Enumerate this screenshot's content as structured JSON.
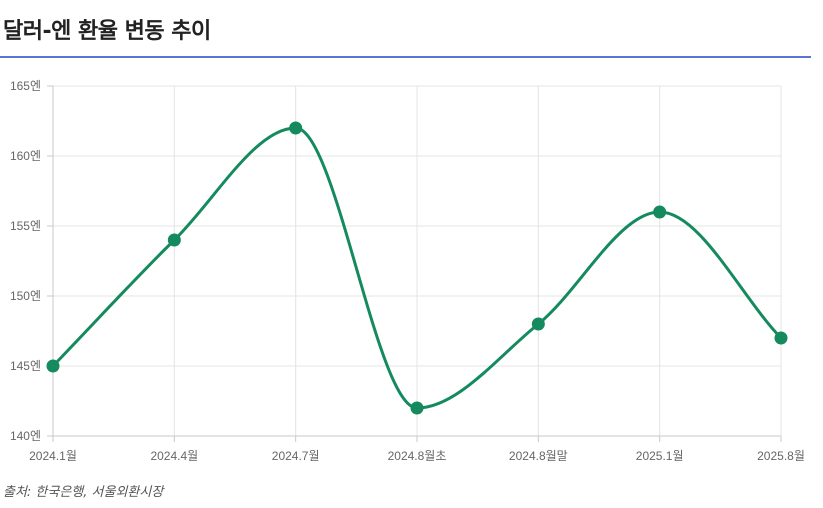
{
  "title": "달러-엔 환율 변동 추이",
  "source": "출처: 한국은행, 서울외환시장",
  "colors": {
    "line": "#158a5e",
    "point": "#158a5e",
    "grid": "#e4e4e4",
    "axis": "#c9c9c9",
    "tick_text": "#666666",
    "title_rule": "#5b73d6"
  },
  "chart_data": {
    "type": "line",
    "title": "",
    "xlabel": "",
    "ylabel": "",
    "categories": [
      "2024.1월",
      "2024.4월",
      "2024.7월",
      "2024.8월초",
      "2024.8월말",
      "2025.1월",
      "2025.8월"
    ],
    "values": [
      145,
      154,
      162,
      142,
      148,
      156,
      147
    ],
    "ylim": [
      140,
      165
    ],
    "y_ticks": [
      140,
      145,
      150,
      155,
      160,
      165
    ],
    "y_tick_suffix": "엔",
    "grid": true,
    "smooth": true,
    "legend": "none"
  }
}
